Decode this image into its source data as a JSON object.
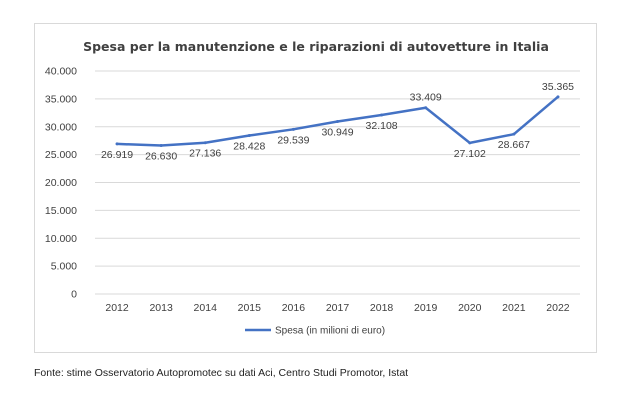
{
  "chart_data": {
    "type": "line",
    "title": "Spesa per la manutenzione e le riparazioni di autovetture in Italia",
    "categories": [
      "2012",
      "2013",
      "2014",
      "2015",
      "2016",
      "2017",
      "2018",
      "2019",
      "2020",
      "2021",
      "2022"
    ],
    "series": [
      {
        "name": "Spesa (in milioni di euro)",
        "values": [
          26919,
          26630,
          27136,
          28428,
          29539,
          30949,
          32108,
          33409,
          27102,
          28667,
          35365
        ],
        "labels": [
          "26.919",
          "26.630",
          "27.136",
          "28.428",
          "29.539",
          "30.949",
          "32.108",
          "33.409",
          "27.102",
          "28.667",
          "35.365"
        ],
        "color": "#4472c4"
      }
    ],
    "ylim": [
      0,
      40000
    ],
    "yticks": [
      0,
      5000,
      10000,
      15000,
      20000,
      25000,
      30000,
      35000,
      40000
    ],
    "ytick_labels": [
      "0",
      "5.000",
      "10.000",
      "15.000",
      "20.000",
      "25.000",
      "30.000",
      "35.000",
      "40.000"
    ],
    "grid": true,
    "legend": "bottom",
    "xlabel": "",
    "ylabel": ""
  },
  "source_note": "Fonte: stime Osservatorio Autopromotec su dati Aci, Centro Studi Promotor, Istat"
}
